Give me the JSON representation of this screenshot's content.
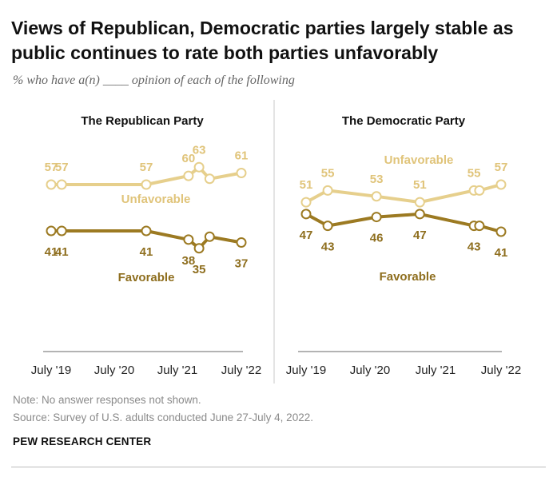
{
  "header": {
    "title": "Views of Republican, Democratic parties largely stable as public continues to rate both parties unfavorably",
    "subtitle": "% who have a(n) ____ opinion of each of the following"
  },
  "colors": {
    "unfavorable": "#e6cf8c",
    "favorable": "#9c7a22",
    "unfavorable_label": "#e0c47a",
    "favorable_label": "#8e6e1e",
    "axis": "#9a9a9a",
    "divider": "#c8c8c8"
  },
  "chart_data": [
    {
      "type": "line",
      "title": "The Republican Party",
      "x_ticks": [
        "July '19",
        "July '20",
        "July '21",
        "July '22"
      ],
      "x": [
        "2019-07",
        "2019-09",
        "2020-07",
        "2021-01",
        "2021-09",
        "2021-11",
        "2022-01",
        "2022-07"
      ],
      "series": [
        {
          "name": "Unfavorable",
          "values": [
            57,
            57,
            null,
            57,
            60,
            63,
            59,
            61
          ],
          "labels": [
            "57",
            "57",
            "",
            "57",
            "60",
            "63",
            "",
            "61"
          ]
        },
        {
          "name": "Favorable",
          "values": [
            41,
            41,
            null,
            41,
            38,
            35,
            39,
            37
          ],
          "labels": [
            "41",
            "41",
            "",
            "41",
            "38",
            "35",
            "",
            "37"
          ]
        }
      ]
    },
    {
      "type": "line",
      "title": "The Democratic Party",
      "x_ticks": [
        "July '19",
        "July '20",
        "July '21",
        "July '22"
      ],
      "x": [
        "2019-07",
        "2019-11",
        "2020-08",
        "2021-04",
        "2022-02",
        "2022-03",
        "2022-07"
      ],
      "series": [
        {
          "name": "Unfavorable",
          "values": [
            51,
            55,
            53,
            51,
            55,
            55,
            57
          ],
          "labels": [
            "51",
            "55",
            "53",
            "51",
            "55",
            "",
            "57"
          ]
        },
        {
          "name": "Favorable",
          "values": [
            47,
            43,
            46,
            47,
            43,
            43,
            41
          ],
          "labels": [
            "47",
            "43",
            "46",
            "47",
            "43",
            "",
            "41"
          ]
        }
      ]
    }
  ],
  "notes": {
    "note": "Note: No answer responses not shown.",
    "source": "Source: Survey of U.S. adults conducted June 27-July 4, 2022.",
    "org": "PEW RESEARCH CENTER"
  }
}
